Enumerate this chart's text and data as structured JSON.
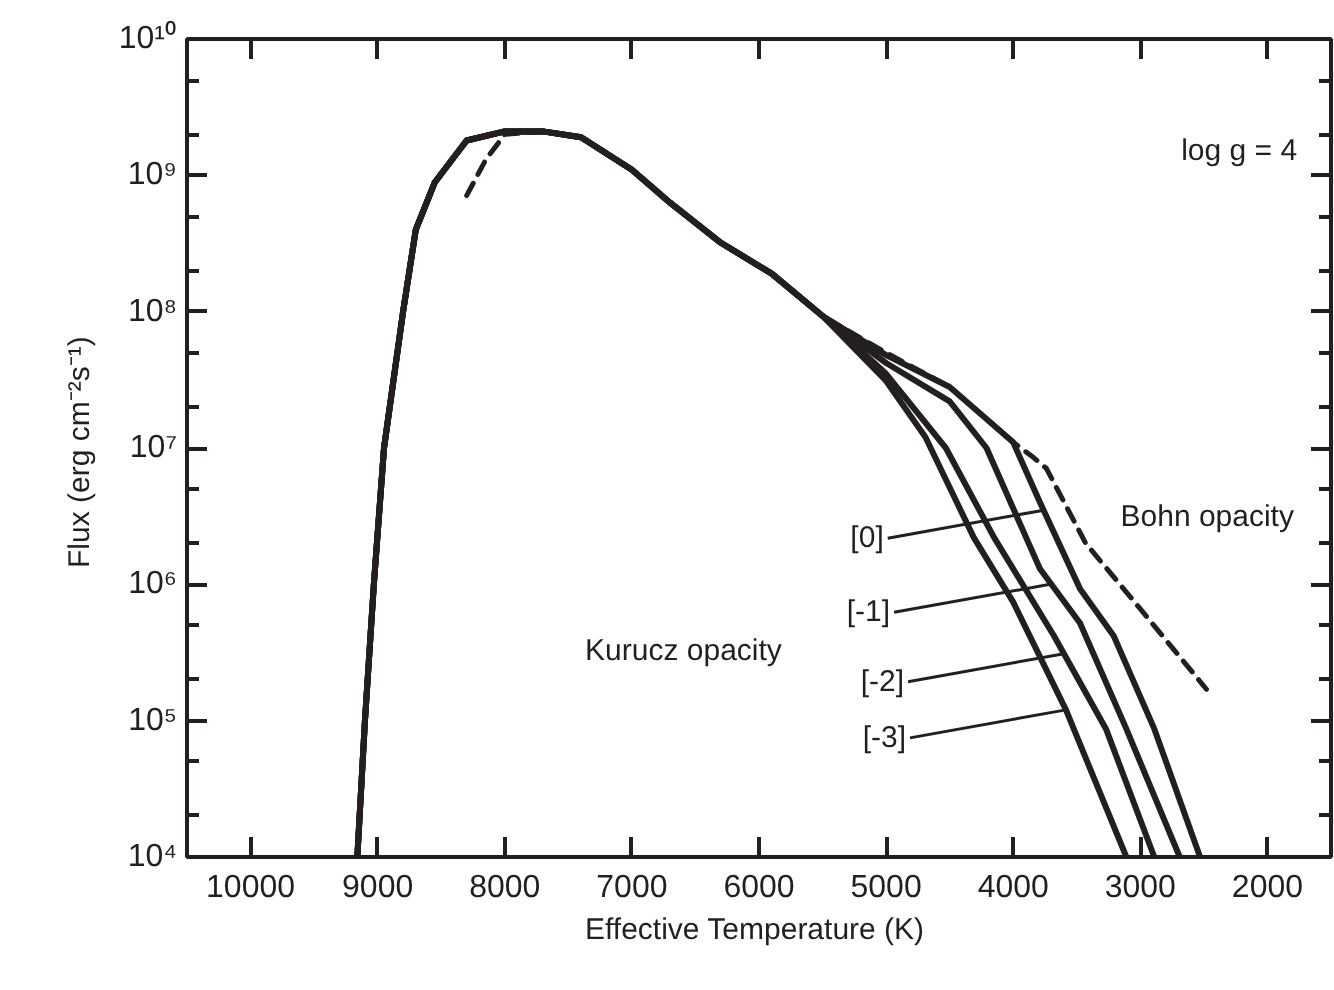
{
  "chart_data": {
    "type": "line",
    "xlabel": "Effective Temperature  (K)",
    "ylabel": "Flux  (erg cm⁻²s⁻¹)",
    "log": "y",
    "grid": false,
    "marker": "none",
    "xlim": [
      10500,
      1500
    ],
    "xticks": [
      10000,
      9000,
      8000,
      7000,
      6000,
      5000,
      4000,
      3000,
      2000
    ],
    "ylim": [
      10000,
      10000000000.0
    ],
    "yticks": [
      {
        "value": 10000,
        "label": "10⁴"
      },
      {
        "value": 100000,
        "label": "10⁵"
      },
      {
        "value": 1000000.0,
        "label": "10⁶"
      },
      {
        "value": 10000000.0,
        "label": "10⁷"
      },
      {
        "value": 100000000.0,
        "label": "10⁸"
      },
      {
        "value": 1000000000.0,
        "label": "10⁹"
      },
      {
        "value": 10000000000.0,
        "label": "10¹⁰"
      }
    ],
    "series": [
      {
        "color": "#231f20",
        "line_style": "solid",
        "x": [
          9160,
          9100,
          9030,
          8950,
          8800,
          8700,
          8550,
          8300,
          8000,
          7700,
          7400,
          7000,
          6700,
          6300,
          5900,
          5500,
          5000,
          4500,
          4000,
          3790,
          3475,
          3210,
          2890,
          2530
        ],
        "values": [
          10000.0,
          100000.0,
          1000000.0,
          10000000.0,
          100000000.0,
          400000000.0,
          890000000.0,
          1800000000.0,
          2100000000.0,
          2100000000.0,
          1900000000.0,
          1100000000.0,
          630000000.0,
          320000000.0,
          190000000.0,
          93000000.0,
          48000000.0,
          28000000.0,
          11000000.0,
          4000000.0,
          930000.0,
          420000.0,
          87000.0,
          10000.0
        ]
      },
      {
        "color": "#231f20",
        "line_style": "solid",
        "x": [
          9160,
          9100,
          9030,
          8950,
          8800,
          8700,
          8550,
          8300,
          8000,
          7700,
          7400,
          7000,
          6700,
          6300,
          5900,
          5500,
          5000,
          4500,
          4210,
          3790,
          3475,
          3110,
          2690
        ],
        "values": [
          10000.0,
          100000.0,
          1000000.0,
          10000000.0,
          100000000.0,
          400000000.0,
          890000000.0,
          1800000000.0,
          2100000000.0,
          2100000000.0,
          1900000000.0,
          1100000000.0,
          630000000.0,
          320000000.0,
          190000000.0,
          93000000.0,
          42000000.0,
          22000000.0,
          10000000.0,
          1300000.0,
          520000.0,
          87000.0,
          10000.0
        ]
      },
      {
        "color": "#231f20",
        "line_style": "solid",
        "x": [
          9160,
          9100,
          9030,
          8950,
          8800,
          8700,
          8550,
          8300,
          8000,
          7700,
          7400,
          7000,
          6700,
          6300,
          5900,
          5500,
          5000,
          4530,
          4150,
          3680,
          3270,
          2890
        ],
        "values": [
          10000.0,
          100000.0,
          1000000.0,
          10000000.0,
          100000000.0,
          400000000.0,
          890000000.0,
          1800000000.0,
          2100000000.0,
          2100000000.0,
          1900000000.0,
          1100000000.0,
          630000000.0,
          320000000.0,
          190000000.0,
          93000000.0,
          35000000.0,
          10000000.0,
          2200000.0,
          420000.0,
          87000.0,
          10000.0
        ]
      },
      {
        "color": "#231f20",
        "line_style": "solid",
        "x": [
          9160,
          9100,
          9030,
          8950,
          8800,
          8700,
          8550,
          8300,
          8000,
          7700,
          7400,
          7000,
          6700,
          6300,
          5900,
          5500,
          5000,
          4690,
          4310,
          4000,
          3585,
          3110
        ],
        "values": [
          10000.0,
          100000.0,
          1000000.0,
          10000000.0,
          100000000.0,
          400000000.0,
          890000000.0,
          1800000000.0,
          2100000000.0,
          2100000000.0,
          1900000000.0,
          1100000000.0,
          630000000.0,
          320000000.0,
          190000000.0,
          93000000.0,
          31000000.0,
          12000000.0,
          2200000.0,
          740000.0,
          120000.0,
          10000.0
        ]
      },
      {
        "color": "#231f20",
        "line_style": "dashed",
        "x": [
          8300,
          8150,
          8000,
          7700,
          7400,
          7000,
          6700,
          6300,
          5900,
          5500,
          5000,
          4500,
          4000,
          3840,
          3740,
          3430,
          3000,
          2480
        ],
        "values": [
          710000000.0,
          1300000000.0,
          2000000000.0,
          2100000000.0,
          1900000000.0,
          1100000000.0,
          630000000.0,
          320000000.0,
          190000000.0,
          93000000.0,
          50000000.0,
          28000000.0,
          11000000.0,
          8500000.0,
          7100000.0,
          2000000.0,
          660000.0,
          170000.0
        ]
      }
    ],
    "annotations": [
      "log g = 4",
      "Kurucz opacity",
      "Bohn opacity",
      {
        "text": "[0]",
        "x": 3760,
        "y": 3500000.0
      },
      {
        "text": "[-1]",
        "x": 3710,
        "y": 1000000.0
      },
      {
        "text": "[-2]",
        "x": 3600,
        "y": 310000.0
      },
      {
        "text": "[-3]",
        "x": 3585,
        "y": 120000.0
      }
    ]
  }
}
